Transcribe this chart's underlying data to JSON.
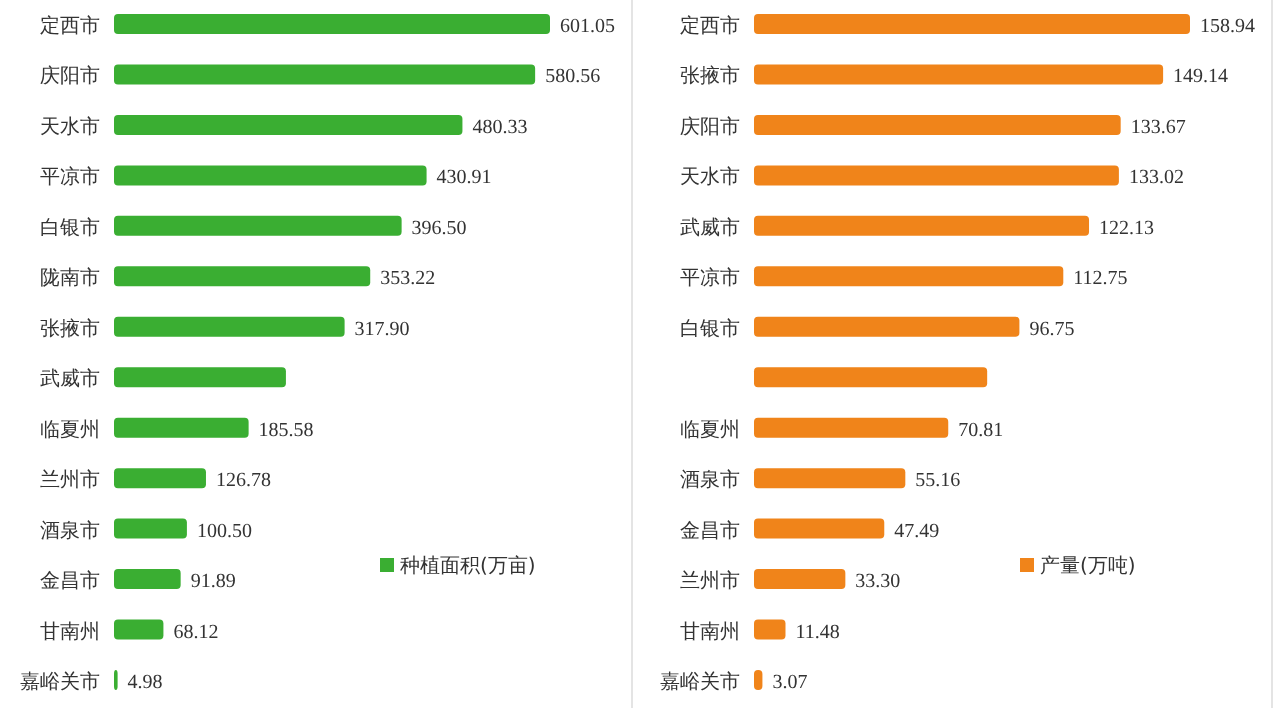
{
  "chart_data": [
    {
      "type": "bar",
      "orientation": "horizontal",
      "legend": "bottom right",
      "categories": [
        "定西市",
        "庆阳市",
        "天水市",
        "平凉市",
        "白银市",
        "陇南市",
        "张掖市",
        "武威市",
        "临夏州",
        "兰州市",
        "酒泉市",
        "金昌市",
        "甘南州",
        "嘉峪关市"
      ],
      "series": [
        {
          "name": "种植面积(万亩)",
          "color": "#3aae32",
          "values": [
            601.05,
            580.56,
            480.33,
            430.91,
            396.5,
            353.22,
            317.9,
            237,
            185.58,
            126.78,
            100.5,
            91.89,
            68.12,
            4.98
          ],
          "value_labels": [
            "601.05",
            "580.56",
            "480.33",
            "430.91",
            "396.50",
            "353.22",
            "317.90",
            null,
            "185.58",
            "126.78",
            "100.50",
            "91.89",
            "68.12",
            "4.98"
          ]
        }
      ]
    },
    {
      "type": "bar",
      "orientation": "horizontal",
      "legend": "bottom right",
      "categories": [
        "定西市",
        "张掖市",
        "庆阳市",
        "天水市",
        "武威市",
        "平凉市",
        "白银市",
        null,
        "临夏州",
        "酒泉市",
        "金昌市",
        "兰州市",
        "甘南州",
        "嘉峪关市"
      ],
      "series": [
        {
          "name": "产量(万吨)",
          "color": "#f0841a",
          "values": [
            158.94,
            149.14,
            133.67,
            133.02,
            122.13,
            112.75,
            96.75,
            85,
            70.81,
            55.16,
            47.49,
            33.3,
            11.48,
            3.07
          ],
          "value_labels": [
            "158.94",
            "149.14",
            "133.67",
            "133.02",
            "122.13",
            "112.75",
            "96.75",
            null,
            "70.81",
            "55.16",
            "47.49",
            "33.30",
            "11.48",
            "3.07"
          ]
        }
      ]
    }
  ]
}
